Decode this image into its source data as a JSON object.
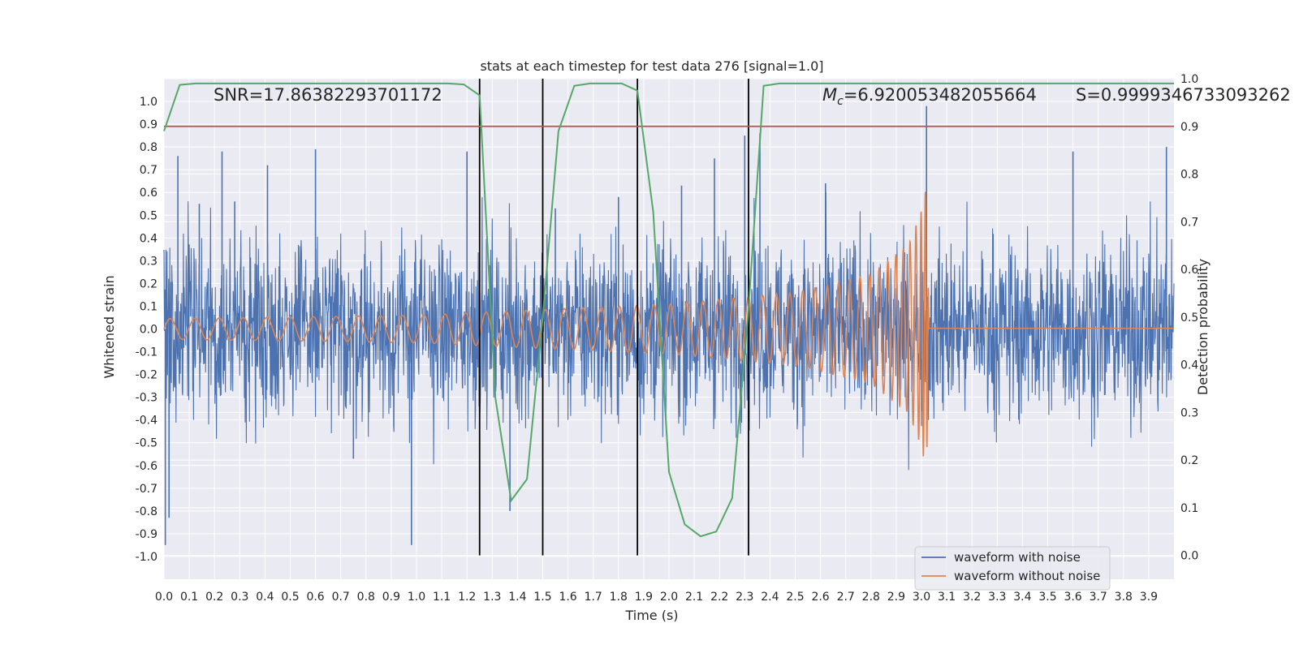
{
  "chart_data": {
    "type": "line",
    "title": "stats at each timestep for test data 276 [signal=1.0]",
    "xlabel": "Time (s)",
    "ylabel": "Whitened strain",
    "y2label": "Detection probability",
    "xlim": [
      0.0,
      4.0
    ],
    "ylim": [
      -1.1,
      1.1
    ],
    "y2lim": [
      -0.05,
      1.0
    ],
    "xticks": [
      0.0,
      0.1,
      0.2,
      0.3,
      0.4,
      0.5,
      0.6,
      0.7,
      0.8,
      0.9,
      1.0,
      1.1,
      1.2,
      1.3,
      1.4,
      1.5,
      1.6,
      1.7,
      1.8,
      1.9,
      2.0,
      2.1,
      2.2,
      2.3,
      2.4,
      2.5,
      2.6,
      2.7,
      2.8,
      2.9,
      3.0,
      3.1,
      3.2,
      3.3,
      3.4,
      3.5,
      3.6,
      3.7,
      3.8,
      3.9
    ],
    "yticks": [
      1.0,
      0.9,
      0.8,
      0.7,
      0.6,
      0.5,
      0.4,
      0.3,
      0.2,
      0.1,
      0.0,
      -0.1,
      -0.2,
      -0.3,
      -0.4,
      -0.5,
      -0.6,
      -0.7,
      -0.8,
      -0.9,
      -1.0
    ],
    "y2ticks": [
      0.0,
      0.1,
      0.2,
      0.3,
      0.4,
      0.5,
      0.6,
      0.7,
      0.8,
      0.9,
      1.0
    ],
    "grid": true,
    "legend_position": "bottom-right",
    "annotations": {
      "snr": "SNR=17.86382293701172",
      "mc": "=6.920053482055664",
      "mc_symbol": "M",
      "mc_subscript": "c",
      "s": "S=0.9999346733093262"
    },
    "vertical_lines_x": [
      1.25,
      1.5,
      1.875,
      2.315
    ],
    "threshold_y2": 0.9,
    "colors": {
      "noisy": "#4c72b0",
      "clean": "#dd8452",
      "probability": "#55a868",
      "threshold": "#c44e52",
      "vline": "#000000",
      "background": "#eaeaf2",
      "grid": "#ffffff"
    },
    "series": [
      {
        "name": "waveform with noise",
        "axis": "left",
        "kind": "noise",
        "peaks": [
          [
            0.005,
            -0.95
          ],
          [
            0.02,
            -0.83
          ],
          [
            0.055,
            0.76
          ],
          [
            0.14,
            0.55
          ],
          [
            0.23,
            0.78
          ],
          [
            0.28,
            0.56
          ],
          [
            0.41,
            0.72
          ],
          [
            0.6,
            0.79
          ],
          [
            0.75,
            -0.57
          ],
          [
            0.98,
            -0.95
          ],
          [
            1.2,
            0.78
          ],
          [
            1.37,
            -0.8
          ],
          [
            1.55,
            0.53
          ],
          [
            1.8,
            0.58
          ],
          [
            2.05,
            0.63
          ],
          [
            2.18,
            0.75
          ],
          [
            2.3,
            0.85
          ],
          [
            2.36,
            0.86
          ],
          [
            2.62,
            0.64
          ],
          [
            3.02,
            0.98
          ],
          [
            3.6,
            0.78
          ],
          [
            3.97,
            0.8
          ]
        ]
      },
      {
        "name": "waveform without noise",
        "axis": "left",
        "kind": "chirp",
        "envelope": [
          [
            0.0,
            0.045
          ],
          [
            1.0,
            0.06
          ],
          [
            2.0,
            0.11
          ],
          [
            2.5,
            0.16
          ],
          [
            2.8,
            0.24
          ],
          [
            2.95,
            0.37
          ],
          [
            3.0,
            0.52
          ],
          [
            3.02,
            0.63
          ],
          [
            3.03,
            0.0
          ],
          [
            4.0,
            0.0
          ]
        ],
        "merger_time": 3.03
      },
      {
        "name": "detection probability",
        "axis": "right",
        "x": [
          0.0,
          0.0625,
          0.125,
          0.1875,
          0.25,
          0.3125,
          0.375,
          0.4375,
          0.5,
          0.5625,
          0.625,
          0.6875,
          0.75,
          0.8125,
          0.875,
          0.9375,
          1.0,
          1.0625,
          1.125,
          1.1875,
          1.25,
          1.3125,
          1.375,
          1.4375,
          1.5,
          1.5625,
          1.625,
          1.6875,
          1.75,
          1.8125,
          1.875,
          1.9375,
          2.0,
          2.0625,
          2.125,
          2.1875,
          2.25,
          2.3125,
          2.375,
          2.4375,
          2.5,
          2.5625,
          2.625,
          2.6875,
          2.75,
          2.8125,
          2.875,
          2.9375,
          3.0,
          3.0625,
          3.125,
          3.1875,
          3.25,
          3.3125,
          3.375,
          3.4375,
          3.5,
          3.5625,
          3.625,
          3.6875,
          3.75,
          3.8125,
          3.875,
          3.9375,
          4.0
        ],
        "values": [
          0.89,
          0.987,
          0.99,
          0.99,
          0.99,
          0.99,
          0.99,
          0.99,
          0.99,
          0.99,
          0.99,
          0.99,
          0.99,
          0.99,
          0.99,
          0.99,
          0.99,
          0.99,
          0.99,
          0.988,
          0.965,
          0.33,
          0.115,
          0.16,
          0.5,
          0.89,
          0.985,
          0.99,
          0.99,
          0.99,
          0.975,
          0.72,
          0.175,
          0.065,
          0.04,
          0.05,
          0.12,
          0.5,
          0.985,
          0.99,
          0.99,
          0.99,
          0.99,
          0.99,
          0.99,
          0.99,
          0.99,
          0.99,
          0.99,
          0.99,
          0.99,
          0.99,
          0.99,
          0.99,
          0.99,
          0.99,
          0.99,
          0.99,
          0.99,
          0.99,
          0.99,
          0.99,
          0.99,
          0.99,
          0.99
        ]
      }
    ]
  }
}
